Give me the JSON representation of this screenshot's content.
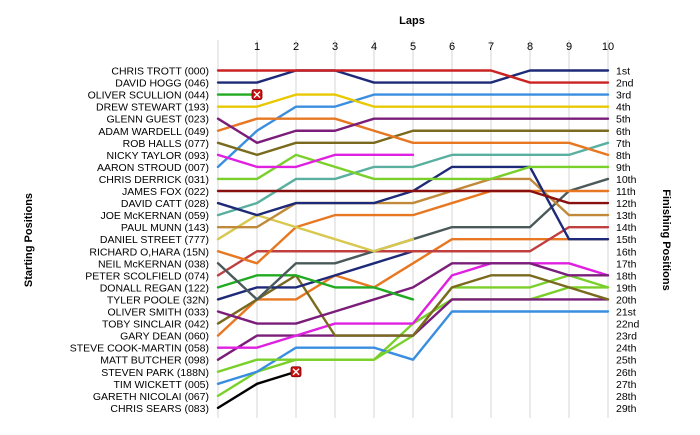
{
  "chart_data": {
    "type": "line",
    "title": "",
    "xlabel": "Laps",
    "ylabel_left": "Starting Positions",
    "ylabel_right": "Finishing Positions",
    "laps": [
      1,
      2,
      3,
      4,
      5,
      6,
      7,
      8,
      9,
      10
    ],
    "drivers": [
      "CHRIS TROTT (000)",
      "DAVID HOGG (046)",
      "OLIVER SCULLION (044)",
      "DREW STEWART (193)",
      "GLENN GUEST (023)",
      "ADAM WARDELL (049)",
      "ROB HALLS (077)",
      "NICKY TAYLOR (093)",
      "AARON STROUD (007)",
      "CHRIS DERRICK (031)",
      "JAMES FOX (022)",
      "DAVID CATT (028)",
      "JOE McKERNAN (059)",
      "PAUL MUNN (143)",
      "DANIEL STREET (777)",
      "RICHARD O,HARA (15N)",
      "NEIL McKERNAN (038)",
      "PETER SCOLFIELD (074)",
      "DONALL REGAN (122)",
      "TYLER POOLE (32N)",
      "OLIVER SMITH (033)",
      "TOBY SINCLAIR (042)",
      "GARY DEAN (060)",
      "STEVE COOK-MARTIN (058)",
      "MATT BUTCHER (098)",
      "STEVEN PARK (188N)",
      "TIM WICKETT (005)",
      "GARETH NICOLAI (067)",
      "CHRIS SEARS (083)"
    ],
    "finishing_positions": [
      "1st",
      "2nd",
      "3rd",
      "4th",
      "5th",
      "6th",
      "7th",
      "8th",
      "9th",
      "10th",
      "11th",
      "12th",
      "13th",
      "14th",
      "15th",
      "16th",
      "17th",
      "18th",
      "19th",
      "20th",
      "21st",
      "22nd",
      "23rd",
      "24th",
      "25th",
      "26th",
      "27th",
      "28th",
      "29th"
    ],
    "series": [
      {
        "start": 1,
        "color": "#cc2222",
        "positions": [
          1,
          1,
          1,
          1,
          1,
          1,
          1,
          2,
          2,
          2
        ]
      },
      {
        "start": 2,
        "color": "#1e2a78",
        "positions": [
          2,
          1,
          1,
          2,
          2,
          2,
          2,
          1,
          1,
          1
        ]
      },
      {
        "start": 3,
        "color": "#22aa22",
        "positions": [
          3
        ],
        "retired": true
      },
      {
        "start": 4,
        "color": "#e8c800",
        "positions": [
          4,
          3,
          3,
          4,
          4,
          4,
          4,
          4,
          4,
          4
        ]
      },
      {
        "start": 5,
        "color": "#7a1e7a",
        "positions": [
          7,
          6,
          6,
          5,
          5,
          5,
          5,
          5,
          5,
          5
        ]
      },
      {
        "start": 6,
        "color": "#e87722",
        "positions": [
          5,
          5,
          5,
          6,
          7,
          7,
          7,
          7,
          7,
          8
        ]
      },
      {
        "start": 7,
        "color": "#7a6a1e",
        "positions": [
          8,
          7,
          7,
          7,
          6,
          6,
          6,
          6,
          6,
          6
        ]
      },
      {
        "start": 8,
        "color": "#e020e0",
        "positions": [
          9,
          9,
          8,
          8,
          8
        ]
      },
      {
        "start": 9,
        "color": "#3a8ee0",
        "positions": [
          6,
          4,
          4,
          3,
          3,
          3,
          3,
          3,
          3,
          3
        ]
      },
      {
        "start": 10,
        "color": "#7ad02a",
        "positions": [
          10,
          8,
          9,
          10,
          10,
          10,
          10,
          9,
          9,
          9
        ]
      },
      {
        "start": 11,
        "color": "#8a1010",
        "positions": [
          11,
          11,
          11,
          11,
          11,
          11,
          11,
          11,
          12,
          12
        ]
      },
      {
        "start": 12,
        "color": "#1e2a78",
        "positions": [
          13,
          12,
          12,
          12,
          11,
          9,
          9,
          9,
          15,
          15
        ]
      },
      {
        "start": 13,
        "color": "#5ab0a0",
        "positions": [
          12,
          10,
          10,
          9,
          9,
          8,
          8,
          8,
          8,
          7
        ]
      },
      {
        "start": 14,
        "color": "#c08a3a",
        "positions": [
          14,
          12,
          12,
          12,
          12,
          11,
          10,
          10,
          13,
          13
        ]
      },
      {
        "start": 15,
        "color": "#d8c850",
        "positions": [
          13,
          14,
          15,
          16,
          15
        ]
      },
      {
        "start": 16,
        "color": "#e87722",
        "positions": [
          17,
          14,
          13,
          13,
          13,
          12,
          11,
          11,
          11,
          11
        ]
      },
      {
        "start": 17,
        "color": "#4a5a5a",
        "positions": [
          20,
          17,
          17,
          16,
          15,
          14,
          14,
          14,
          11,
          10
        ]
      },
      {
        "start": 18,
        "color": "#c04040",
        "positions": [
          16,
          16,
          16,
          16,
          16,
          16,
          16,
          16,
          14,
          14
        ]
      },
      {
        "start": 19,
        "color": "#22aa22",
        "positions": [
          18,
          18,
          19,
          19,
          20
        ]
      },
      {
        "start": 20,
        "color": "#1e2a78",
        "positions": [
          19,
          19,
          18,
          17,
          16
        ]
      },
      {
        "start": 21,
        "color": "#7a1e7a",
        "positions": [
          22,
          22,
          21,
          20,
          19,
          17,
          17,
          17,
          18,
          18
        ]
      },
      {
        "start": 22,
        "color": "#7a6a1e",
        "positions": [
          20,
          18,
          23,
          23,
          23,
          19,
          18,
          18,
          19,
          20
        ]
      },
      {
        "start": 23,
        "color": "#e87722",
        "positions": [
          20,
          20,
          18,
          19,
          17,
          15,
          15,
          15,
          15,
          15
        ]
      },
      {
        "start": 24,
        "color": "#e020e0",
        "positions": [
          24,
          23,
          22,
          22,
          22,
          18,
          17,
          17,
          17,
          18
        ]
      },
      {
        "start": 25,
        "color": "#7a1e7a",
        "positions": [
          23,
          23,
          23,
          23,
          23,
          20,
          20,
          20,
          20,
          20
        ]
      },
      {
        "start": 26,
        "color": "#7ad02a",
        "positions": [
          25,
          25,
          25,
          25,
          23,
          19,
          19,
          19,
          18,
          19
        ]
      },
      {
        "start": 27,
        "color": "#3a8ee0",
        "positions": [
          26,
          24,
          24,
          24,
          25,
          21,
          21,
          21,
          21,
          21
        ]
      },
      {
        "start": 28,
        "color": "#7ad02a",
        "positions": [
          26,
          25,
          25,
          25,
          22,
          20,
          20,
          20,
          19,
          19
        ]
      },
      {
        "start": 29,
        "color": "#000000",
        "positions": [
          27,
          26
        ],
        "retired": true
      }
    ],
    "grid": "vertical",
    "legend": "none"
  }
}
